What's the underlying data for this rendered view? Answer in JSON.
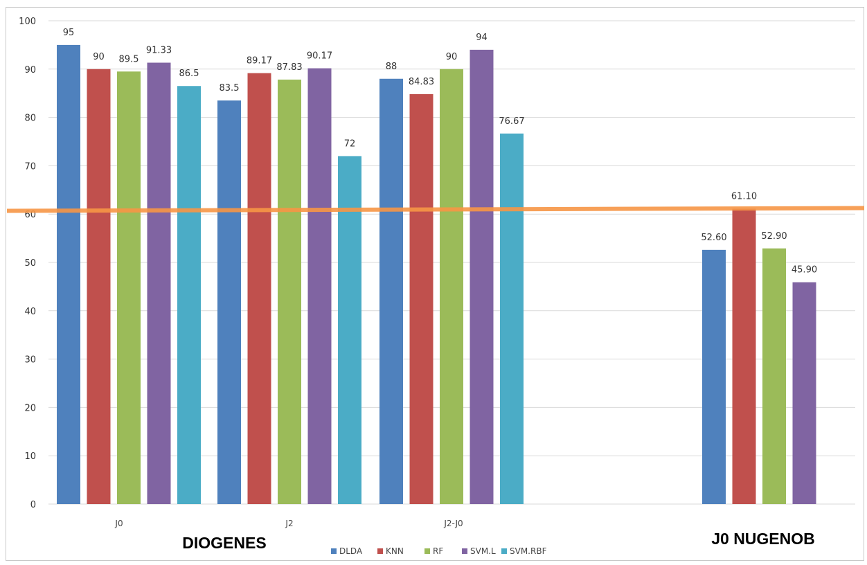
{
  "chart_data": {
    "type": "bar",
    "title": "",
    "xlabel": "",
    "ylabel": "",
    "ylim": [
      0,
      100
    ],
    "yticks": [
      0,
      10,
      20,
      30,
      40,
      50,
      60,
      70,
      80,
      90,
      100
    ],
    "categories": [
      "J0",
      "J2",
      "J2-J0",
      "J0 NUGENOB"
    ],
    "series": [
      {
        "name": "DLDA",
        "color": "#4F81BD",
        "values": [
          95,
          83.5,
          88,
          52.6
        ],
        "labels": [
          "95",
          "83.5",
          "88",
          "52.60"
        ]
      },
      {
        "name": "KNN",
        "color": "#C0504D",
        "values": [
          90,
          89.17,
          84.83,
          61.1
        ],
        "labels": [
          "90",
          "89.17",
          "84.83",
          "61.10"
        ]
      },
      {
        "name": "RF",
        "color": "#9BBB59",
        "values": [
          89.5,
          87.83,
          90,
          52.9
        ],
        "labels": [
          "89.5",
          "87.83",
          "90",
          "52.90"
        ]
      },
      {
        "name": "SVM.L",
        "color": "#8064A2",
        "values": [
          91.33,
          90.17,
          94,
          45.9
        ],
        "labels": [
          "91.33",
          "90.17",
          "94",
          "45.90"
        ]
      },
      {
        "name": "SVM.RBF",
        "color": "#4BACC6",
        "values": [
          86.5,
          72,
          76.67,
          null
        ],
        "labels": [
          "86.5",
          "72",
          "76.67",
          ""
        ]
      }
    ],
    "reference_line": {
      "value": 61.1,
      "color": "#F79646"
    },
    "legend_position": "bottom",
    "grid": true,
    "group_labels": [
      "DIOGENES",
      "J0 NUGENOB"
    ]
  }
}
